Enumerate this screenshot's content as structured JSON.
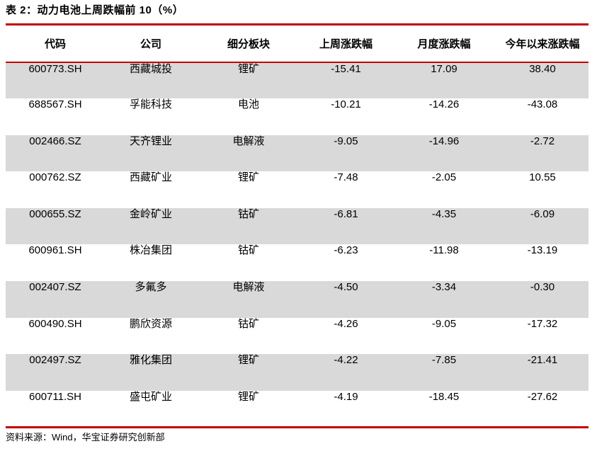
{
  "title": "表 2：动力电池上周跌幅前 10（%）",
  "table": {
    "headers": [
      "代码",
      "公司",
      "细分板块",
      "上周涨跌幅",
      "月度涨跌幅",
      "今年以来涨跌幅"
    ],
    "rows": [
      {
        "code": "600773.SH",
        "company": "西藏城投",
        "sector": "锂矿",
        "week": "-15.41",
        "month": "17.09",
        "ytd": "38.40"
      },
      {
        "code": "688567.SH",
        "company": "孚能科技",
        "sector": "电池",
        "week": "-10.21",
        "month": "-14.26",
        "ytd": "-43.08"
      },
      {
        "code": "002466.SZ",
        "company": "天齐锂业",
        "sector": "电解液",
        "week": "-9.05",
        "month": "-14.96",
        "ytd": "-2.72"
      },
      {
        "code": "000762.SZ",
        "company": "西藏矿业",
        "sector": "锂矿",
        "week": "-7.48",
        "month": "-2.05",
        "ytd": "10.55"
      },
      {
        "code": "000655.SZ",
        "company": "金岭矿业",
        "sector": "钴矿",
        "week": "-6.81",
        "month": "-4.35",
        "ytd": "-6.09"
      },
      {
        "code": "600961.SH",
        "company": "株冶集团",
        "sector": "钴矿",
        "week": "-6.23",
        "month": "-11.98",
        "ytd": "-13.19"
      },
      {
        "code": "002407.SZ",
        "company": "多氟多",
        "sector": "电解液",
        "week": "-4.50",
        "month": "-3.34",
        "ytd": "-0.30"
      },
      {
        "code": "600490.SH",
        "company": "鹏欣资源",
        "sector": "钴矿",
        "week": "-4.26",
        "month": "-9.05",
        "ytd": "-17.32"
      },
      {
        "code": "002497.SZ",
        "company": "雅化集团",
        "sector": "锂矿",
        "week": "-4.22",
        "month": "-7.85",
        "ytd": "-21.41"
      },
      {
        "code": "600711.SH",
        "company": "盛屯矿业",
        "sector": "锂矿",
        "week": "-4.19",
        "month": "-18.45",
        "ytd": "-27.62"
      }
    ]
  },
  "source": "资料来源：Wind，华宝证券研究创新部",
  "colors": {
    "accent_red": "#C00000",
    "row_alt": "#D9D9D9",
    "text": "#000000"
  }
}
